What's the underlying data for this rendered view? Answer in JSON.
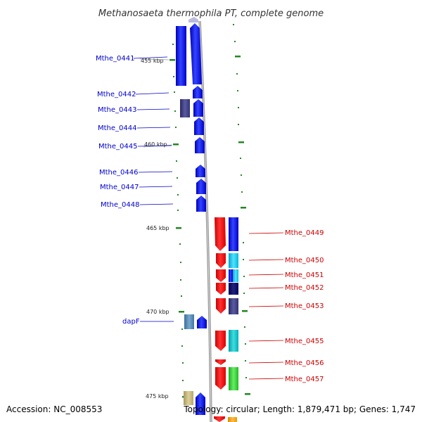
{
  "title": "Methanosaeta thermophila PT, complete genome",
  "accession": "Accession: NC_008553",
  "topology": "Topology: circular; Length: 1,879,471 bp; Genes: 1,747",
  "kbp_labels": [
    "455 kbp",
    "460 kbp",
    "465 kbp",
    "470 kbp",
    "475 kbp"
  ],
  "left_labels": [
    "Mthe_0441",
    "Mthe_0442",
    "Mthe_0443",
    "Mthe_0444",
    "Mthe_0445",
    "Mthe_0446",
    "Mthe_0447",
    "Mthe_0448",
    "dapF"
  ],
  "right_labels": [
    "Mthe_0449",
    "Mthe_0450",
    "Mthe_0451",
    "Mthe_0452",
    "Mthe_0453",
    "Mthe_0455",
    "Mthe_0456",
    "Mthe_0457"
  ],
  "colors": {
    "forward_gene": "#0000ee",
    "reverse_gene": "#ee0000",
    "label_left": "#0000cc",
    "label_right": "#cc0000",
    "backbone": "#999999",
    "tick": "#228822"
  }
}
